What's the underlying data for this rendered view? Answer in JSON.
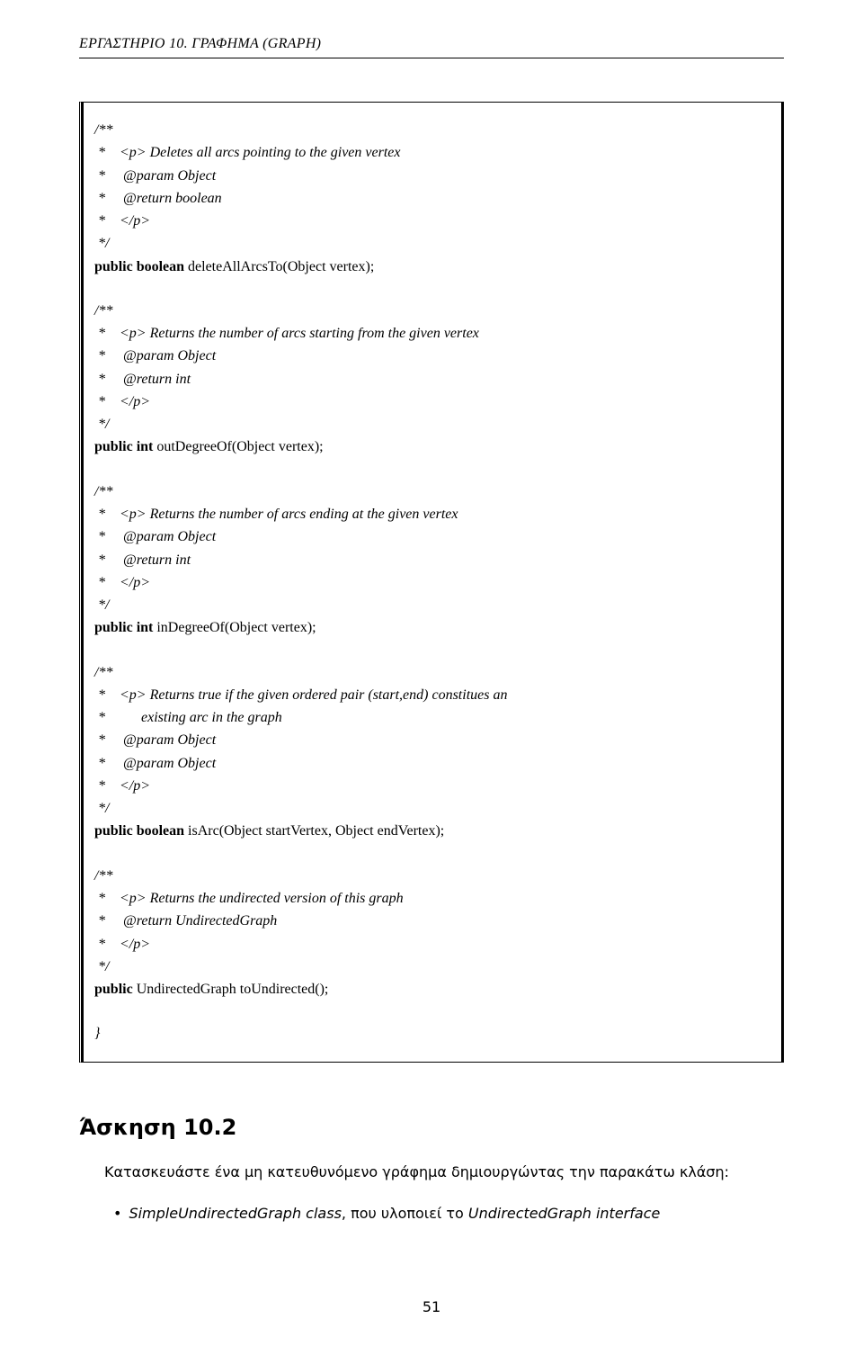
{
  "header": "ΕΡΓΑΣΤΗΡΙΟ 10.   ΓΡΑΦΗΜΑ (GRAPH)",
  "blocks": [
    {
      "lines": [
        "/**",
        " *    <p> Deletes all arcs pointing to the given vertex",
        " *     @param Object",
        " *     @return boolean",
        " *    </p>",
        " */"
      ],
      "sig": {
        "pre": "public boolean",
        "post": " deleteAllArcsTo(Object vertex);"
      }
    },
    {
      "lines": [
        "/**",
        " *    <p> Returns the number of arcs starting from the given vertex",
        " *     @param Object",
        " *     @return int",
        " *    </p>",
        " */"
      ],
      "sig": {
        "pre": "public int",
        "post": " outDegreeOf(Object vertex);"
      }
    },
    {
      "lines": [
        "/**",
        " *    <p> Returns the number of arcs ending at the given vertex",
        " *     @param Object",
        " *     @return int",
        " *    </p>",
        " */"
      ],
      "sig": {
        "pre": "public int",
        "post": " inDegreeOf(Object vertex);"
      }
    },
    {
      "lines": [
        "/**",
        " *    <p> Returns true if the given ordered pair (start,end) constitues an",
        " *          existing arc in the graph",
        " *     @param Object",
        " *     @param Object",
        " *    </p>",
        " */"
      ],
      "sig": {
        "pre": "public boolean",
        "post": " isArc(Object startVertex, Object endVertex);"
      }
    },
    {
      "lines": [
        "/**",
        " *    <p> Returns the undirected version of this graph",
        " *     @return UndirectedGraph",
        " *    </p>",
        " */"
      ],
      "sig": {
        "pre": "public",
        "post": " UndirectedGraph toUndirected();"
      }
    }
  ],
  "closingBrace": "}",
  "section": {
    "heading": "Άσκηση 10.2",
    "paragraph": "Κατασκευάστε ένα μη κατευθυνόμενο γράφημα δημιουργώντας την παρακάτω κλάση:",
    "bullet": {
      "italicPart": "SimpleUndirectedGraph class",
      "rest": ", που υλοποιεί το ",
      "italicPart2": "UndirectedGraph interface"
    }
  },
  "pageNumber": "51"
}
